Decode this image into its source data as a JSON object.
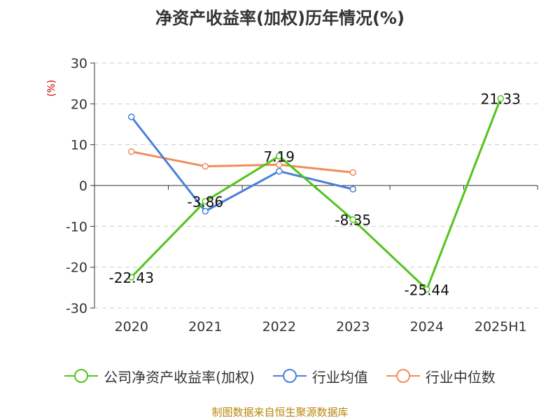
{
  "chart_data": {
    "type": "line",
    "title": "净资产收益率(加权)历年情况(%)",
    "ylabel": "(%)",
    "xlabel": "",
    "categories": [
      "2020",
      "2021",
      "2022",
      "2023",
      "2024",
      "2025H1"
    ],
    "ylim": [
      -30,
      30
    ],
    "yticks": [
      30,
      20,
      10,
      0,
      -10,
      -20,
      -30
    ],
    "grid": true,
    "legend_position": "bottom",
    "series": [
      {
        "name": "公司净资产收益率(加权)",
        "color": "#52c41a",
        "values": [
          -22.43,
          -3.86,
          7.19,
          -8.35,
          -25.44,
          21.33
        ],
        "data_labels": [
          "-22.43",
          "-3.86",
          "7.19",
          "-8.35",
          "-25.44",
          "21.33"
        ]
      },
      {
        "name": "行业均值",
        "color": "#4a7fd9",
        "values": [
          16.8,
          -6.3,
          3.5,
          -0.9,
          null,
          null
        ]
      },
      {
        "name": "行业中位数",
        "color": "#f28c5a",
        "values": [
          8.3,
          4.7,
          5.1,
          3.2,
          null,
          null
        ]
      }
    ]
  },
  "ylabel_color": "#cc0000",
  "footer": {
    "source": "制图数据来自恒生聚源数据库"
  }
}
